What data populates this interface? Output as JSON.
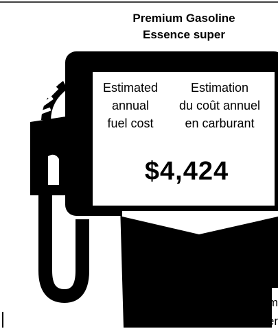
{
  "header": {
    "title_lines": [
      "Premium Gasoline",
      "Essence super"
    ]
  },
  "display": {
    "label_en": [
      "Estimated",
      "annual",
      "fuel cost"
    ],
    "label_fr": [
      "Estimation",
      "du coût annuel",
      "en carburant"
    ],
    "value": "$4,424"
  },
  "fragments": [
    "m",
    "ner"
  ]
}
